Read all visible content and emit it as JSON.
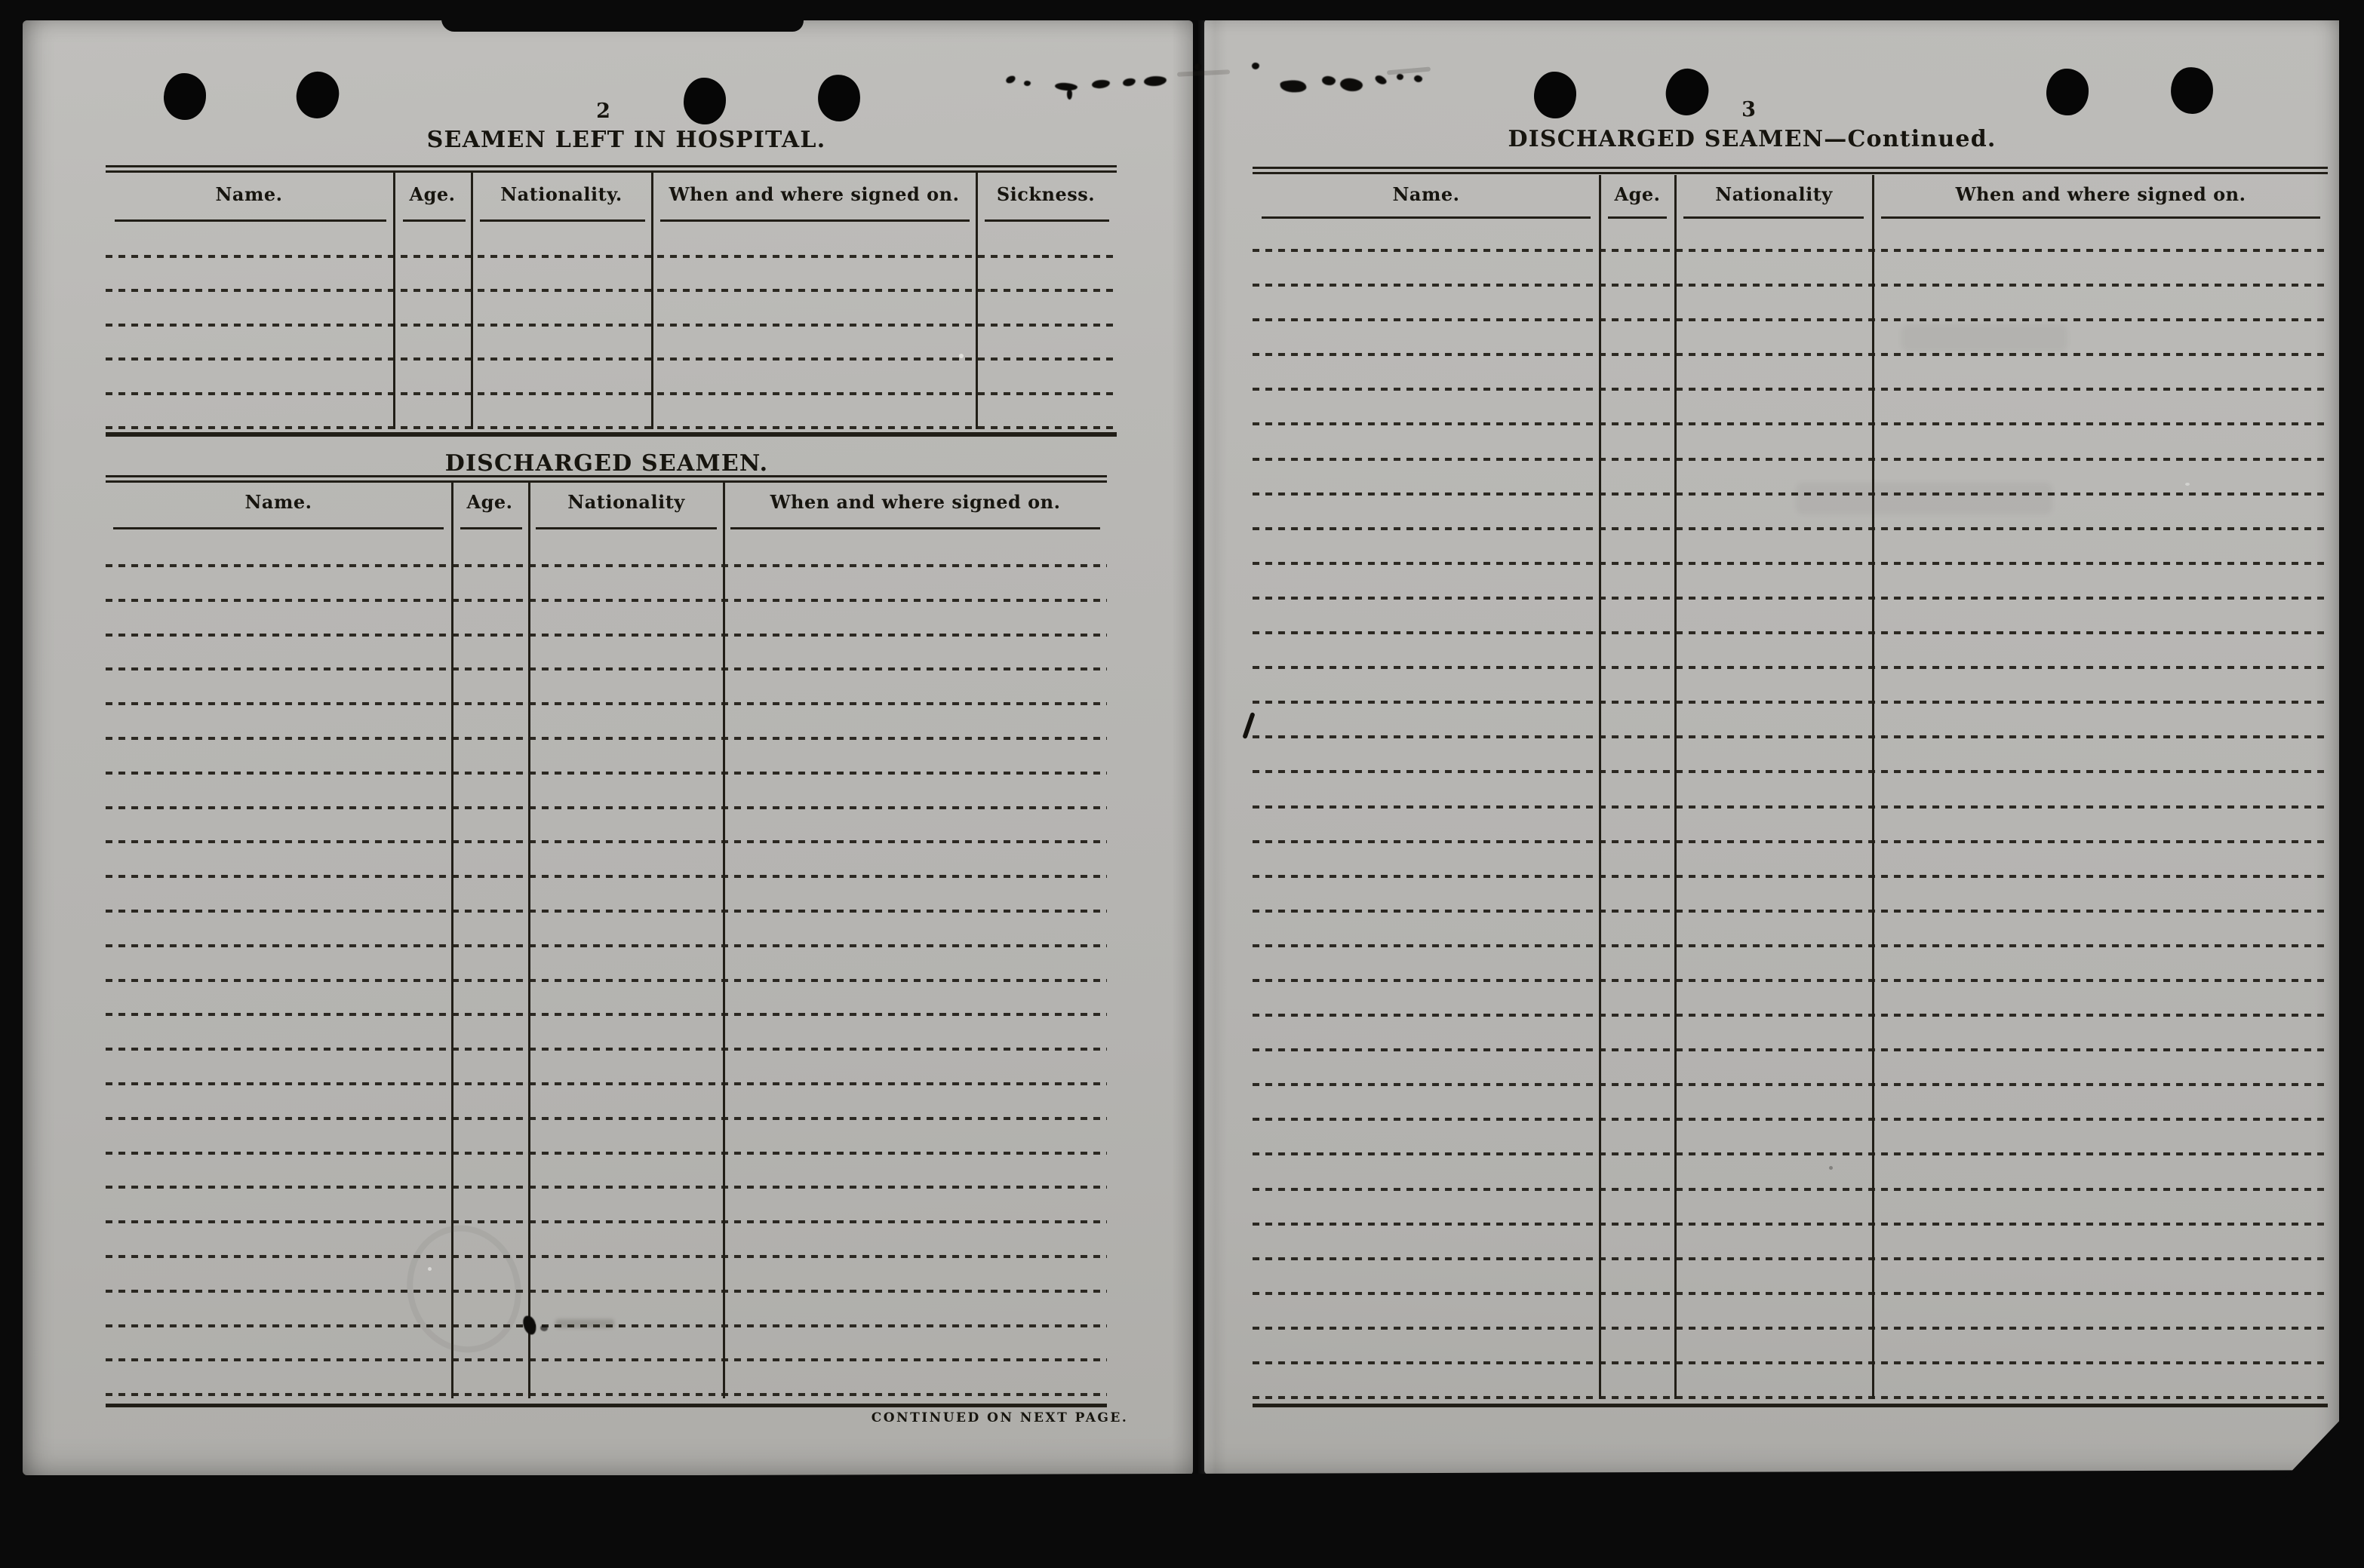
{
  "colors": {
    "paper": "#b8b7b4",
    "ink": "#17150f",
    "scan_background": "#0a0a0a"
  },
  "left_page": {
    "page_number": "2",
    "hospital_table": {
      "title": "SEAMEN LEFT IN HOSPITAL.",
      "columns": [
        "Name.",
        "Age.",
        "Nationality.",
        "When and where signed on.",
        "Sickness."
      ],
      "blank_row_count": 6
    },
    "discharged_table": {
      "title": "DISCHARGED SEAMEN.",
      "columns": [
        "Name.",
        "Age.",
        "Nationality",
        "When and where signed on."
      ],
      "blank_row_count": 25
    },
    "footer_note": "CONTINUED ON NEXT PAGE."
  },
  "right_page": {
    "page_number": "3",
    "discharged_continued_table": {
      "title": "DISCHARGED SEAMEN—Continued.",
      "columns": [
        "Name.",
        "Age.",
        "Nationality",
        "When and where signed on."
      ],
      "blank_row_count": 34
    }
  }
}
